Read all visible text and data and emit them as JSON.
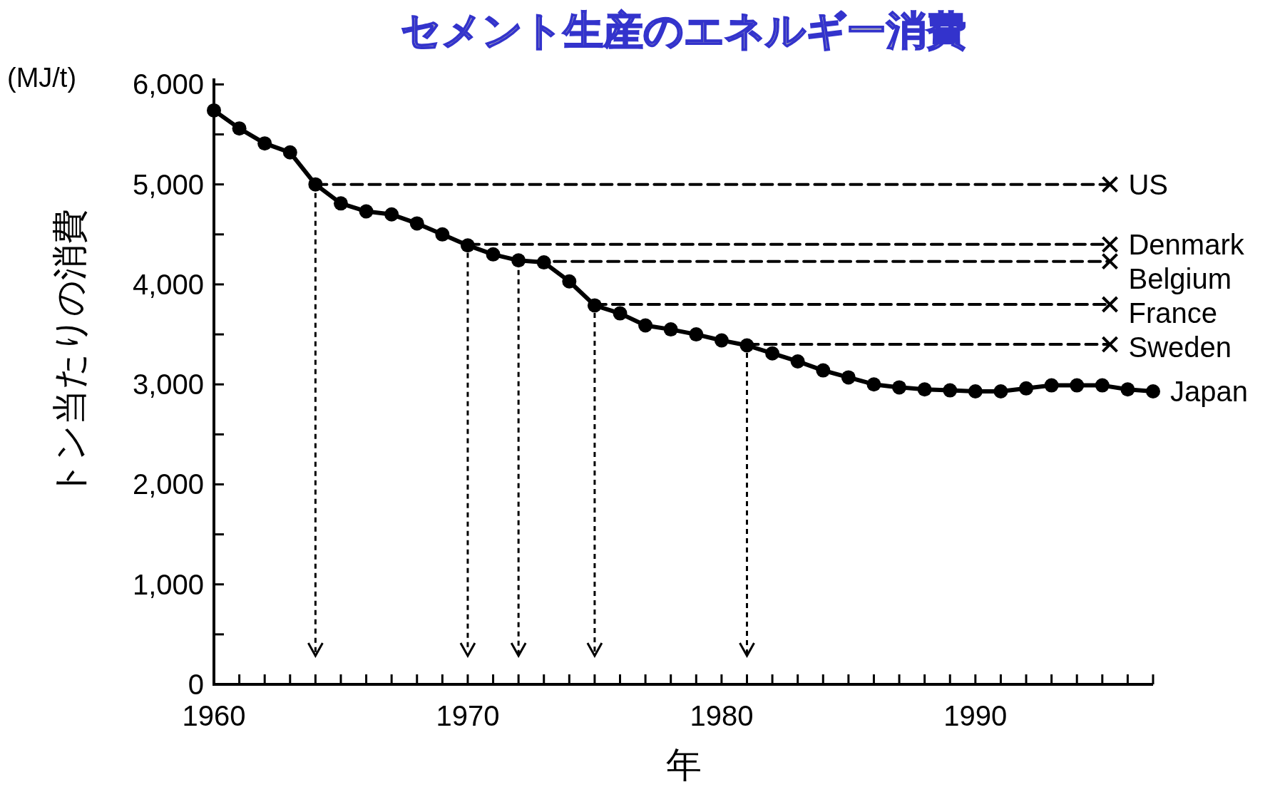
{
  "chart_data": {
    "type": "line",
    "title": "セメント生産のエネルギー消費",
    "xlabel": "年",
    "ylabel": "トン当たりの消費",
    "annotations": [
      "(MJ/t)"
    ],
    "x": [
      1960,
      1961,
      1962,
      1963,
      1964,
      1965,
      1966,
      1967,
      1968,
      1969,
      1970,
      1971,
      1972,
      1973,
      1974,
      1975,
      1976,
      1977,
      1978,
      1979,
      1980,
      1981,
      1982,
      1983,
      1984,
      1985,
      1986,
      1987,
      1988,
      1989,
      1990,
      1991,
      1992,
      1993,
      1994,
      1995,
      1996,
      1997
    ],
    "xlim": [
      1960,
      1997
    ],
    "ylim": [
      0,
      6060
    ],
    "xticks": [
      1960,
      {
        "value": 1961,
        "label": null
      },
      {
        "value": 1962,
        "label": null
      },
      {
        "value": 1963,
        "label": null
      },
      {
        "value": 1964,
        "label": null
      },
      {
        "value": 1965,
        "label": null
      },
      {
        "value": 1966,
        "label": null
      },
      {
        "value": 1967,
        "label": null
      },
      {
        "value": 1968,
        "label": null
      },
      {
        "value": 1969,
        "label": null
      },
      1970,
      {
        "value": 1971,
        "label": null
      },
      {
        "value": 1972,
        "label": null
      },
      {
        "value": 1973,
        "label": null
      },
      {
        "value": 1974,
        "label": null
      },
      {
        "value": 1975,
        "label": null
      },
      {
        "value": 1976,
        "label": null
      },
      {
        "value": 1977,
        "label": null
      },
      {
        "value": 1978,
        "label": null
      },
      {
        "value": 1979,
        "label": null
      },
      1980,
      {
        "value": 1981,
        "label": null
      },
      {
        "value": 1982,
        "label": null
      },
      {
        "value": 1983,
        "label": null
      },
      {
        "value": 1984,
        "label": null
      },
      {
        "value": 1985,
        "label": null
      },
      {
        "value": 1986,
        "label": null
      },
      {
        "value": 1987,
        "label": null
      },
      {
        "value": 1988,
        "label": null
      },
      {
        "value": 1989,
        "label": null
      },
      1990,
      {
        "value": 1991,
        "label": null
      },
      {
        "value": 1992,
        "label": null
      },
      {
        "value": 1993,
        "label": null
      },
      {
        "value": 1994,
        "label": null
      },
      {
        "value": 1995,
        "label": null
      },
      {
        "value": 1996,
        "label": null
      },
      {
        "value": 1997,
        "label": null
      }
    ],
    "yticks": [
      {
        "value": 0,
        "label": "0"
      },
      {
        "value": 500,
        "label": null
      },
      {
        "value": 1000,
        "label": "1,000"
      },
      {
        "value": 1500,
        "label": null
      },
      {
        "value": 2000,
        "label": "2,000"
      },
      {
        "value": 2500,
        "label": null
      },
      {
        "value": 3000,
        "label": "3,000"
      },
      {
        "value": 3500,
        "label": null
      },
      {
        "value": 4000,
        "label": "4,000"
      },
      {
        "value": 4500,
        "label": null
      },
      {
        "value": 5000,
        "label": "5,000"
      },
      {
        "value": 5500,
        "label": null
      },
      {
        "value": 6000,
        "label": "6,000"
      }
    ],
    "series": [
      {
        "name": "Japan",
        "color": "#000000",
        "marker": "circle",
        "line_style": "solid",
        "values": [
          5740,
          5560,
          5410,
          5320,
          5000,
          4810,
          4730,
          4700,
          4610,
          4500,
          4390,
          4300,
          4240,
          4220,
          4030,
          3790,
          3710,
          3590,
          3550,
          3500,
          3440,
          3390,
          3310,
          3230,
          3140,
          3070,
          3000,
          2970,
          2950,
          2940,
          2930,
          2930,
          2960,
          2990,
          2990,
          2990,
          2950,
          2930
        ]
      },
      {
        "name": "US",
        "type": "line",
        "color": "#000000",
        "marker": "cross",
        "line_style": "dashed",
        "x": [
          1964,
          1995.3
        ],
        "values": [
          5000,
          5000
        ]
      },
      {
        "name": "Denmark",
        "type": "line",
        "color": "#000000",
        "marker": "cross",
        "line_style": "dashed",
        "x": [
          1970,
          1995.3
        ],
        "values": [
          4400,
          4400
        ]
      },
      {
        "name": "Belgium",
        "type": "line",
        "color": "#000000",
        "marker": "cross",
        "line_style": "dashed",
        "x": [
          1972,
          1995.3
        ],
        "values": [
          4230,
          4230
        ]
      },
      {
        "name": "France",
        "type": "line",
        "color": "#000000",
        "marker": "cross",
        "line_style": "dashed",
        "x": [
          1975,
          1995.3
        ],
        "values": [
          3800,
          3800
        ]
      },
      {
        "name": "Sweden",
        "type": "line",
        "color": "#000000",
        "marker": "cross",
        "line_style": "dashed",
        "x": [
          1981,
          1995.3
        ],
        "values": [
          3400,
          3400
        ]
      }
    ]
  }
}
